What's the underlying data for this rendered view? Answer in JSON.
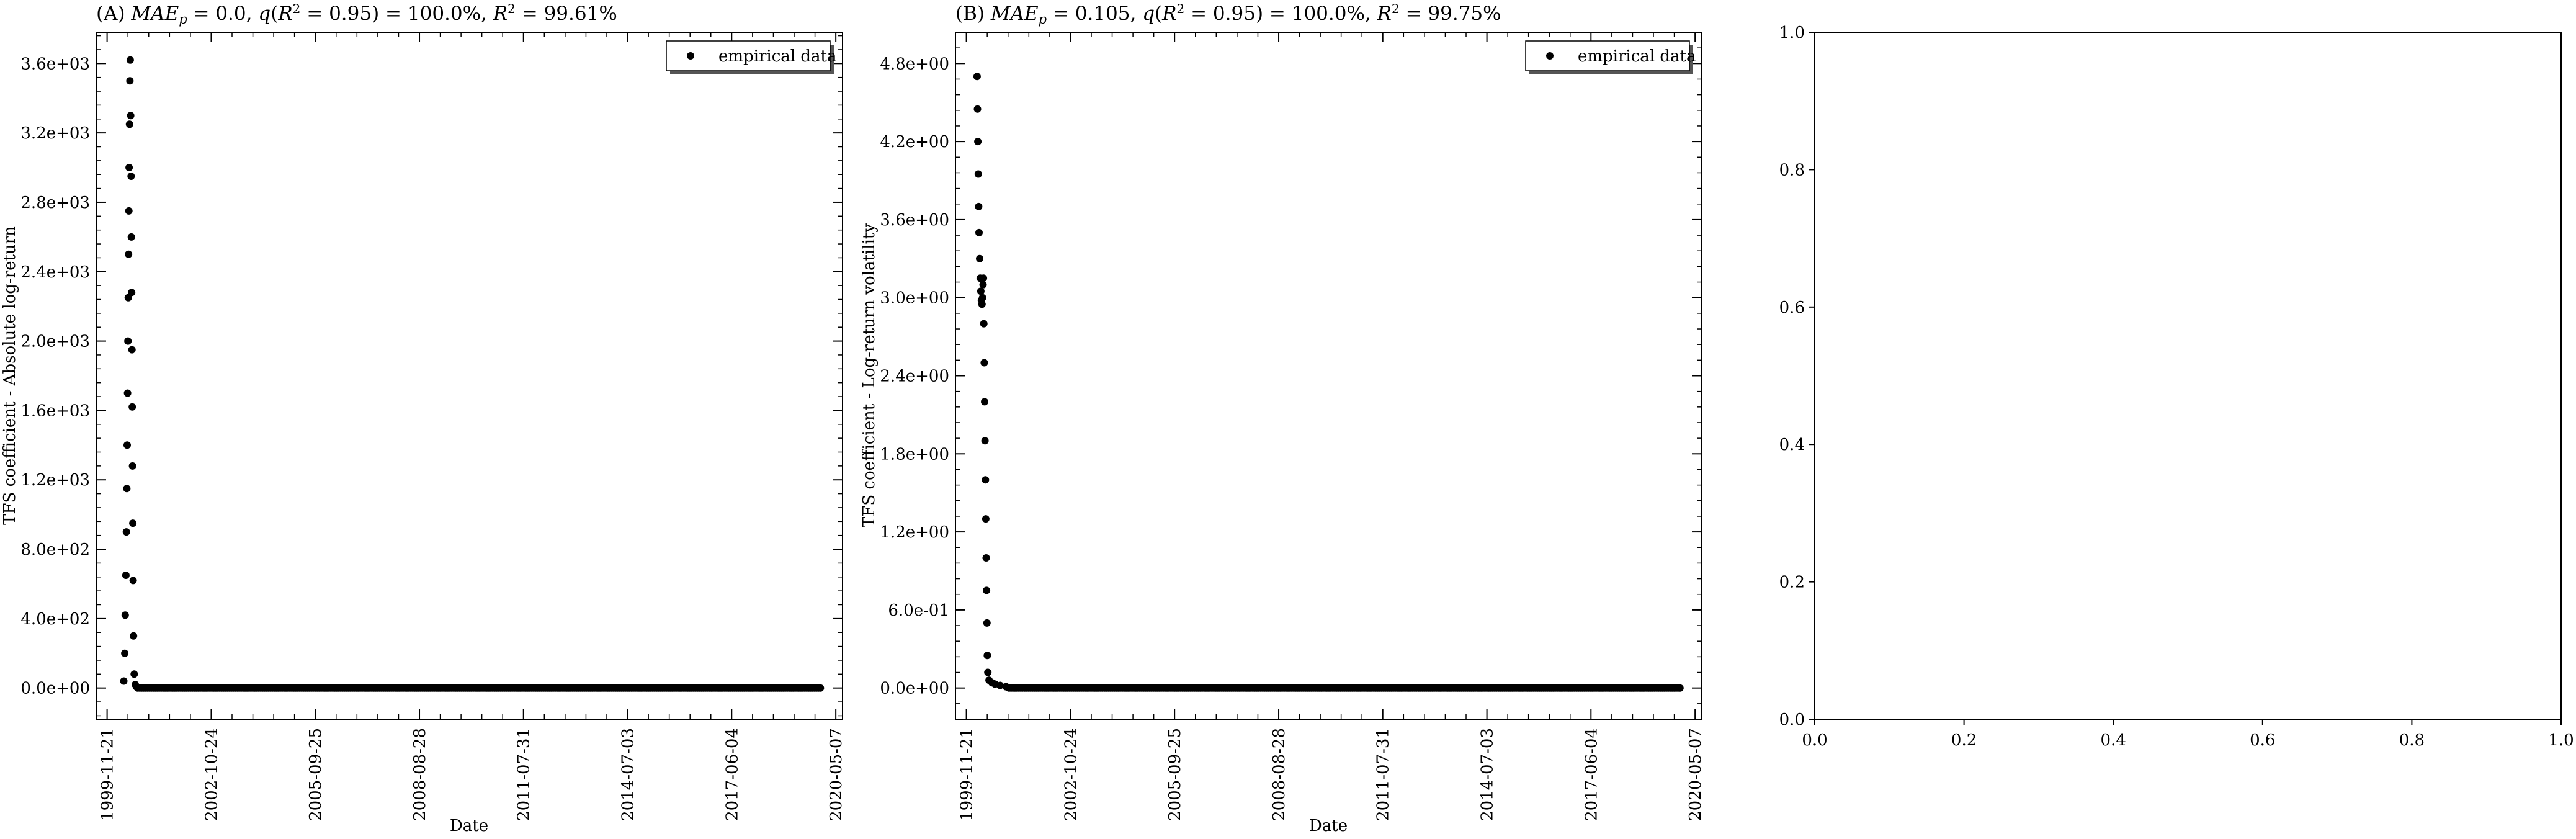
{
  "chart_data": [
    {
      "type": "scatter",
      "panel": "A",
      "title": "(A) MAE_p = 0.0, q(R² = 0.95) = 100.0%, R² = 99.61%",
      "title_parts": {
        "prefix": "(A) ",
        "mae_symbol": "MAE",
        "mae_sub": "p",
        "mae_val": " = 0.0, ",
        "q_symbol": "q",
        "q_open": "(",
        "r_symbol": "R",
        "r_sup": "2",
        "q_mid": " = 0.95) = 100.0%, ",
        "r2_symbol": "R",
        "r2_sup": "2",
        "r2_val": " = 99.61%"
      },
      "xlabel": "Date",
      "ylabel": "TFS coefficient - Absolute log-return",
      "legend": {
        "label": "empirical data",
        "position": "top-right"
      },
      "x_tick_labels": [
        "1999-11-21",
        "2002-10-24",
        "2005-09-25",
        "2008-08-28",
        "2011-07-31",
        "2014-07-03",
        "2017-06-04",
        "2020-05-07"
      ],
      "x_range": [
        "1999-08-01",
        "2020-07-15"
      ],
      "y_tick_labels": [
        "0.0e+00",
        "4.0e+02",
        "8.0e+02",
        "1.2e+03",
        "1.6e+03",
        "2.0e+03",
        "2.4e+03",
        "2.8e+03",
        "3.2e+03",
        "3.6e+03"
      ],
      "y_ticks": [
        0,
        400,
        800,
        1200,
        1600,
        2000,
        2400,
        2800,
        3200,
        3600
      ],
      "ylim": [
        -180,
        3780
      ],
      "series": [
        {
          "marker_color": "#000000",
          "points": [
            [
              "2000-05-10",
              40
            ],
            [
              "2000-05-20",
              200
            ],
            [
              "2000-05-25",
              420
            ],
            [
              "2000-06-01",
              650
            ],
            [
              "2000-06-06",
              900
            ],
            [
              "2000-06-10",
              1150
            ],
            [
              "2000-06-14",
              1400
            ],
            [
              "2000-06-18",
              1700
            ],
            [
              "2000-06-22",
              2000
            ],
            [
              "2000-06-25",
              2250
            ],
            [
              "2000-06-28",
              2500
            ],
            [
              "2000-07-01",
              2750
            ],
            [
              "2000-07-04",
              3000
            ],
            [
              "2000-07-08",
              3250
            ],
            [
              "2000-07-12",
              3500
            ],
            [
              "2000-07-15",
              3620
            ],
            [
              "2000-07-20",
              3300
            ],
            [
              "2000-07-24",
              2950
            ],
            [
              "2000-07-27",
              2600
            ],
            [
              "2000-07-30",
              2280
            ],
            [
              "2000-08-02",
              1950
            ],
            [
              "2000-08-05",
              1620
            ],
            [
              "2000-08-08",
              1280
            ],
            [
              "2000-08-11",
              950
            ],
            [
              "2000-08-14",
              620
            ],
            [
              "2000-08-18",
              300
            ],
            [
              "2000-08-25",
              80
            ],
            [
              "2000-09-05",
              20
            ],
            [
              "2000-09-20",
              5
            ]
          ],
          "tail": {
            "from": "2000-10-01",
            "to": "2019-12-10",
            "value": 0
          }
        }
      ]
    },
    {
      "type": "scatter",
      "panel": "B",
      "title": "(B) MAE_p = 0.105, q(R² = 0.95) = 100.0%, R² = 99.75%",
      "title_parts": {
        "prefix": "(B) ",
        "mae_symbol": "MAE",
        "mae_sub": "p",
        "mae_val": " = 0.105, ",
        "q_symbol": "q",
        "q_open": "(",
        "r_symbol": "R",
        "r_sup": "2",
        "q_mid": " = 0.95) = 100.0%, ",
        "r2_symbol": "R",
        "r2_sup": "2",
        "r2_val": " = 99.75%"
      },
      "xlabel": "Date",
      "ylabel": "TFS coefficient - Log-return volatility",
      "legend": {
        "label": "empirical data",
        "position": "top-right"
      },
      "x_tick_labels": [
        "1999-11-21",
        "2002-10-24",
        "2005-09-25",
        "2008-08-28",
        "2011-07-31",
        "2014-07-03",
        "2017-06-04",
        "2020-05-07"
      ],
      "x_range": [
        "1999-08-01",
        "2020-07-15"
      ],
      "y_tick_labels": [
        "0.0e+00",
        "6.0e-01",
        "1.2e+00",
        "1.8e+00",
        "2.4e+00",
        "3.0e+00",
        "3.6e+00",
        "4.2e+00",
        "4.8e+00"
      ],
      "y_ticks": [
        0,
        0.6,
        1.2,
        1.8,
        2.4,
        3.0,
        3.6,
        4.2,
        4.8
      ],
      "ylim": [
        -0.24,
        5.04
      ],
      "series": [
        {
          "marker_color": "#000000",
          "points": [
            [
              "2000-03-10",
              4.7
            ],
            [
              "2000-03-14",
              4.45
            ],
            [
              "2000-03-18",
              4.2
            ],
            [
              "2000-03-22",
              3.95
            ],
            [
              "2000-03-26",
              3.7
            ],
            [
              "2000-03-30",
              3.5
            ],
            [
              "2000-04-05",
              3.3
            ],
            [
              "2000-04-11",
              3.15
            ],
            [
              "2000-04-17",
              3.05
            ],
            [
              "2000-04-23",
              2.98
            ],
            [
              "2000-04-29",
              2.95
            ],
            [
              "2000-05-05",
              3.0
            ],
            [
              "2000-05-10",
              3.1
            ],
            [
              "2000-05-14",
              3.15
            ],
            [
              "2000-05-18",
              2.8
            ],
            [
              "2000-05-22",
              2.5
            ],
            [
              "2000-05-26",
              2.2
            ],
            [
              "2000-05-30",
              1.9
            ],
            [
              "2000-06-03",
              1.6
            ],
            [
              "2000-06-07",
              1.3
            ],
            [
              "2000-06-11",
              1.0
            ],
            [
              "2000-06-15",
              0.75
            ],
            [
              "2000-06-19",
              0.5
            ],
            [
              "2000-06-23",
              0.25
            ],
            [
              "2000-06-28",
              0.12
            ],
            [
              "2000-07-10",
              0.06
            ],
            [
              "2000-08-10",
              0.04
            ],
            [
              "2000-09-10",
              0.03
            ],
            [
              "2000-11-01",
              0.02
            ],
            [
              "2001-01-01",
              0.01
            ]
          ],
          "tail": {
            "from": "2001-02-01",
            "to": "2019-12-10",
            "value": 0
          }
        }
      ]
    },
    {
      "type": "scatter",
      "panel": "C",
      "title": "",
      "xlabel": "",
      "ylabel": "",
      "x_tick_labels": [
        "0.0",
        "0.2",
        "0.4",
        "0.6",
        "0.8",
        "1.0"
      ],
      "x_ticks": [
        0,
        0.2,
        0.4,
        0.6,
        0.8,
        1.0
      ],
      "y_tick_labels": [
        "0.0",
        "0.2",
        "0.4",
        "0.6",
        "0.8",
        "1.0"
      ],
      "y_ticks": [
        0,
        0.2,
        0.4,
        0.6,
        0.8,
        1.0
      ],
      "xlim": [
        0,
        1
      ],
      "ylim": [
        0,
        1
      ],
      "series": []
    }
  ]
}
